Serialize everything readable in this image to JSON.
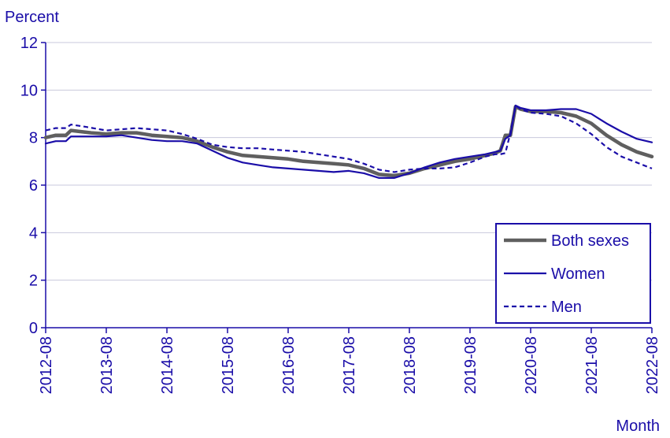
{
  "chart_data": {
    "type": "line",
    "ylabel": "Percent",
    "xlabel": "Month",
    "ylim": [
      0,
      12
    ],
    "yticks": [
      "0",
      "2",
      "4",
      "6",
      "8",
      "10",
      "12"
    ],
    "xticks": [
      "2012-08",
      "2013-08",
      "2014-08",
      "2015-08",
      "2016-08",
      "2017-08",
      "2018-08",
      "2019-08",
      "2020-08",
      "2021-08",
      "2022-08"
    ],
    "grid": "horizontal",
    "legend_position": "bottom-right",
    "colors": {
      "both": "#5f5f5f",
      "women": "#1a0da8",
      "men": "#1a0da8",
      "text": "#1a0da8",
      "grid": "#c8c8dc"
    },
    "series": [
      {
        "name": "Both sexes",
        "points": [
          [
            "2012-08",
            8.0
          ],
          [
            "2012-10",
            8.1
          ],
          [
            "2012-12",
            8.1
          ],
          [
            "2013-01",
            8.3
          ],
          [
            "2013-03",
            8.25
          ],
          [
            "2013-05",
            8.2
          ],
          [
            "2013-08",
            8.15
          ],
          [
            "2013-11",
            8.2
          ],
          [
            "2014-02",
            8.2
          ],
          [
            "2014-05",
            8.1
          ],
          [
            "2014-08",
            8.05
          ],
          [
            "2014-11",
            8.0
          ],
          [
            "2015-02",
            7.85
          ],
          [
            "2015-05",
            7.6
          ],
          [
            "2015-08",
            7.4
          ],
          [
            "2015-11",
            7.25
          ],
          [
            "2016-02",
            7.2
          ],
          [
            "2016-05",
            7.15
          ],
          [
            "2016-08",
            7.1
          ],
          [
            "2016-11",
            7.0
          ],
          [
            "2017-02",
            6.95
          ],
          [
            "2017-05",
            6.9
          ],
          [
            "2017-08",
            6.85
          ],
          [
            "2017-11",
            6.7
          ],
          [
            "2018-02",
            6.45
          ],
          [
            "2018-05",
            6.4
          ],
          [
            "2018-08",
            6.5
          ],
          [
            "2018-11",
            6.7
          ],
          [
            "2019-02",
            6.85
          ],
          [
            "2019-05",
            7.0
          ],
          [
            "2019-08",
            7.1
          ],
          [
            "2019-11",
            7.25
          ],
          [
            "2020-01",
            7.35
          ],
          [
            "2020-02",
            7.45
          ],
          [
            "2020-03",
            8.1
          ],
          [
            "2020-04",
            8.1
          ],
          [
            "2020-05",
            9.3
          ],
          [
            "2020-06",
            9.2
          ],
          [
            "2020-08",
            9.1
          ],
          [
            "2020-11",
            9.1
          ],
          [
            "2021-02",
            9.05
          ],
          [
            "2021-05",
            8.9
          ],
          [
            "2021-08",
            8.6
          ],
          [
            "2021-11",
            8.1
          ],
          [
            "2022-02",
            7.7
          ],
          [
            "2022-05",
            7.4
          ],
          [
            "2022-08",
            7.2
          ]
        ]
      },
      {
        "name": "Women",
        "points": [
          [
            "2012-08",
            7.75
          ],
          [
            "2012-10",
            7.85
          ],
          [
            "2012-12",
            7.85
          ],
          [
            "2013-01",
            8.05
          ],
          [
            "2013-04",
            8.05
          ],
          [
            "2013-08",
            8.05
          ],
          [
            "2013-11",
            8.1
          ],
          [
            "2014-02",
            8.0
          ],
          [
            "2014-05",
            7.9
          ],
          [
            "2014-08",
            7.85
          ],
          [
            "2014-11",
            7.85
          ],
          [
            "2015-02",
            7.75
          ],
          [
            "2015-05",
            7.45
          ],
          [
            "2015-08",
            7.15
          ],
          [
            "2015-11",
            6.95
          ],
          [
            "2016-02",
            6.85
          ],
          [
            "2016-05",
            6.75
          ],
          [
            "2016-08",
            6.7
          ],
          [
            "2016-11",
            6.65
          ],
          [
            "2017-02",
            6.6
          ],
          [
            "2017-05",
            6.55
          ],
          [
            "2017-08",
            6.6
          ],
          [
            "2017-11",
            6.5
          ],
          [
            "2018-02",
            6.3
          ],
          [
            "2018-05",
            6.3
          ],
          [
            "2018-08",
            6.5
          ],
          [
            "2018-11",
            6.75
          ],
          [
            "2019-02",
            6.95
          ],
          [
            "2019-05",
            7.1
          ],
          [
            "2019-08",
            7.2
          ],
          [
            "2019-11",
            7.3
          ],
          [
            "2020-01",
            7.4
          ],
          [
            "2020-02",
            7.45
          ],
          [
            "2020-03",
            7.95
          ],
          [
            "2020-04",
            8.1
          ],
          [
            "2020-05",
            9.35
          ],
          [
            "2020-06",
            9.25
          ],
          [
            "2020-08",
            9.15
          ],
          [
            "2020-11",
            9.15
          ],
          [
            "2021-02",
            9.2
          ],
          [
            "2021-05",
            9.2
          ],
          [
            "2021-08",
            9.0
          ],
          [
            "2021-11",
            8.6
          ],
          [
            "2022-02",
            8.25
          ],
          [
            "2022-05",
            7.95
          ],
          [
            "2022-08",
            7.8
          ]
        ]
      },
      {
        "name": "Men",
        "points": [
          [
            "2012-08",
            8.3
          ],
          [
            "2012-10",
            8.4
          ],
          [
            "2012-12",
            8.4
          ],
          [
            "2013-01",
            8.55
          ],
          [
            "2013-04",
            8.45
          ],
          [
            "2013-08",
            8.3
          ],
          [
            "2013-11",
            8.35
          ],
          [
            "2014-02",
            8.4
          ],
          [
            "2014-05",
            8.35
          ],
          [
            "2014-08",
            8.3
          ],
          [
            "2014-11",
            8.15
          ],
          [
            "2015-02",
            7.95
          ],
          [
            "2015-05",
            7.7
          ],
          [
            "2015-08",
            7.6
          ],
          [
            "2015-11",
            7.55
          ],
          [
            "2016-02",
            7.55
          ],
          [
            "2016-05",
            7.5
          ],
          [
            "2016-08",
            7.45
          ],
          [
            "2016-11",
            7.4
          ],
          [
            "2017-02",
            7.3
          ],
          [
            "2017-05",
            7.2
          ],
          [
            "2017-08",
            7.1
          ],
          [
            "2017-11",
            6.9
          ],
          [
            "2018-02",
            6.65
          ],
          [
            "2018-05",
            6.55
          ],
          [
            "2018-08",
            6.65
          ],
          [
            "2018-11",
            6.7
          ],
          [
            "2019-02",
            6.7
          ],
          [
            "2019-05",
            6.75
          ],
          [
            "2019-08",
            6.95
          ],
          [
            "2019-11",
            7.2
          ],
          [
            "2020-01",
            7.3
          ],
          [
            "2020-02",
            7.3
          ],
          [
            "2020-03",
            7.35
          ],
          [
            "2020-04",
            8.2
          ],
          [
            "2020-05",
            9.35
          ],
          [
            "2020-06",
            9.2
          ],
          [
            "2020-08",
            9.05
          ],
          [
            "2020-11",
            9.0
          ],
          [
            "2021-02",
            8.9
          ],
          [
            "2021-05",
            8.6
          ],
          [
            "2021-08",
            8.15
          ],
          [
            "2021-11",
            7.6
          ],
          [
            "2022-02",
            7.2
          ],
          [
            "2022-05",
            6.95
          ],
          [
            "2022-08",
            6.7
          ]
        ]
      }
    ]
  }
}
